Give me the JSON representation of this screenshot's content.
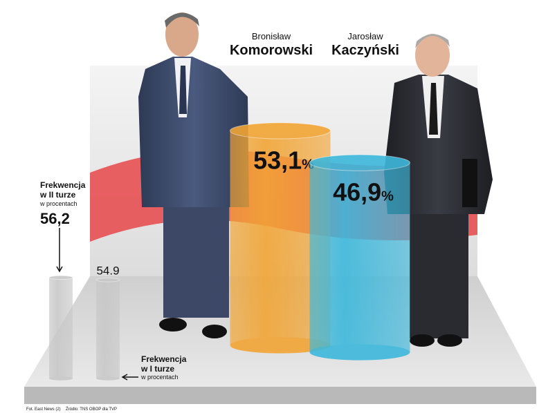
{
  "chart_data": [
    {
      "type": "cylinder",
      "first_names": [
        "Bronisław",
        "Jarosław"
      ],
      "categories": [
        "Komorowski",
        "Kaczyński"
      ],
      "values": [
        53.1,
        46.9
      ],
      "value_labels": [
        "53,1%",
        "46,9%"
      ],
      "colors": [
        "#f2a535",
        "#3db8dc"
      ]
    },
    {
      "type": "cylinder",
      "category_title": "Frekwencja",
      "categories": [
        "w II turze",
        "w I turze"
      ],
      "unit_label": "w procentach",
      "values": [
        56.2,
        54.9
      ],
      "value_labels": [
        "56,2",
        "54.9"
      ],
      "color": "#c8c8c8"
    }
  ],
  "footnotes": [
    "Fot. East News (2)",
    "Źródło: TNS OBOP dla TVP"
  ]
}
